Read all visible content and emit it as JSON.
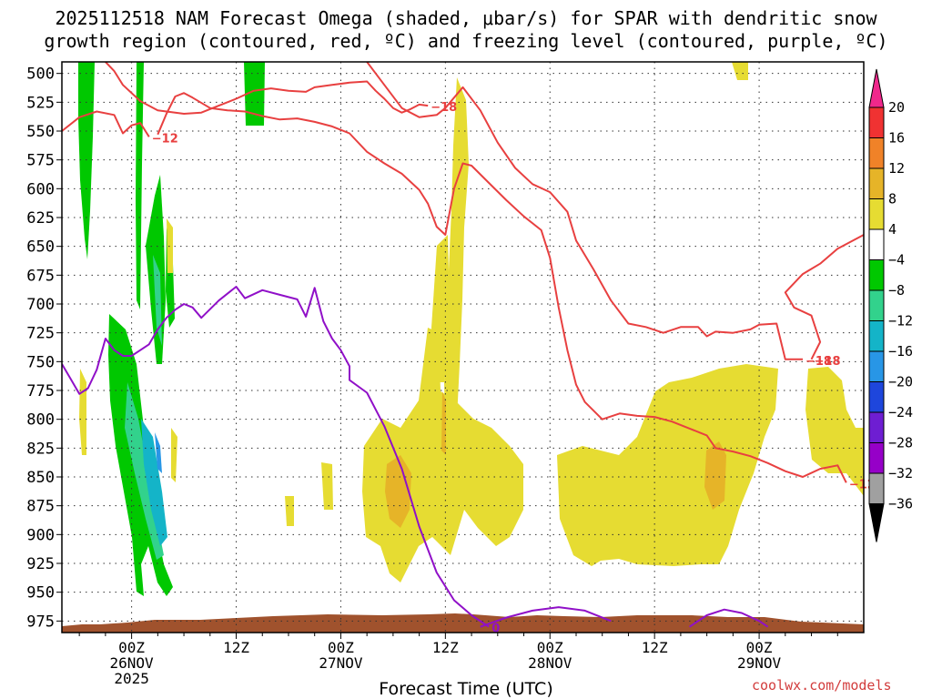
{
  "title_line1": "2025112518 NAM Forecast Omega (shaded, μbar/s) for SPAR with dendritic snow",
  "title_line2": "growth region (contoured, red, ºC) and freezing level (contoured, purple, ºC)",
  "watermark": "coolwx.com/models",
  "chart_data": {
    "type": "heatmap",
    "xlabel": "Forecast Time (UTC)",
    "ylabel": "",
    "y_scale": "pressure_hPa_inverted",
    "ylim": [
      985,
      490
    ],
    "y_ticks": [
      "500",
      "525",
      "550",
      "575",
      "600",
      "625",
      "650",
      "675",
      "700",
      "725",
      "750",
      "775",
      "800",
      "825",
      "850",
      "875",
      "900",
      "925",
      "950",
      "975"
    ],
    "xlim_hours": [
      -8,
      84
    ],
    "x_ticks": [
      {
        "hour": 0,
        "labels": [
          "00Z",
          "26NOV",
          "2025"
        ]
      },
      {
        "hour": 12,
        "labels": [
          "12Z"
        ]
      },
      {
        "hour": 24,
        "labels": [
          "00Z",
          "27NOV"
        ]
      },
      {
        "hour": 36,
        "labels": [
          "12Z"
        ]
      },
      {
        "hour": 48,
        "labels": [
          "00Z",
          "28NOV"
        ]
      },
      {
        "hour": 60,
        "labels": [
          "12Z"
        ]
      },
      {
        "hour": 72,
        "labels": [
          "00Z",
          "29NOV"
        ]
      }
    ],
    "colorbar": {
      "labels": [
        "20",
        "16",
        "12",
        "8",
        "4",
        "−4",
        "−8",
        "−12",
        "−16",
        "−20",
        "−24",
        "−28",
        "−32",
        "−36"
      ],
      "colors": [
        "#f03232",
        "#f08228",
        "#e6b428",
        "#e6dc32",
        "#ffffff",
        "#00c800",
        "#32d28c",
        "#14b4c8",
        "#2896e6",
        "#1e46dc",
        "#6e1ed2",
        "#9600c8",
        "#a0a0a0"
      ],
      "top_arrow": "#f0288c",
      "bottom_arrow": "#000000"
    },
    "series": [
      {
        "name": "dendritic -12 (upper)",
        "color": "#e84040",
        "label": "−12",
        "points": [
          [
            -8,
            550
          ],
          [
            -6,
            538
          ],
          [
            -4,
            533
          ],
          [
            -2,
            536
          ],
          [
            -1,
            552
          ],
          [
            0,
            545
          ],
          [
            1,
            543
          ],
          [
            2,
            555
          ]
        ]
      },
      {
        "name": "dendritic -12 (main)",
        "color": "#e84040",
        "label": "−12",
        "points": [
          [
            3,
            553
          ],
          [
            4,
            535
          ],
          [
            5,
            520
          ],
          [
            6,
            517
          ],
          [
            7,
            521
          ],
          [
            9,
            530
          ],
          [
            11,
            532
          ],
          [
            13,
            533
          ],
          [
            15,
            537
          ],
          [
            17,
            540
          ],
          [
            19,
            539
          ],
          [
            21,
            542
          ],
          [
            23,
            546
          ],
          [
            25,
            552
          ],
          [
            27,
            568
          ],
          [
            29,
            578
          ],
          [
            31,
            587
          ],
          [
            33,
            601
          ],
          [
            34,
            613
          ],
          [
            35,
            633
          ],
          [
            36,
            640
          ],
          [
            37,
            600
          ],
          [
            38,
            578
          ],
          [
            39,
            580
          ],
          [
            41,
            595
          ],
          [
            43,
            610
          ],
          [
            45,
            624
          ],
          [
            47,
            636
          ],
          [
            48,
            660
          ],
          [
            49,
            703
          ],
          [
            50,
            740
          ],
          [
            51,
            770
          ],
          [
            52,
            785
          ],
          [
            54,
            800
          ],
          [
            56,
            795
          ],
          [
            58,
            797
          ],
          [
            60,
            798
          ],
          [
            62,
            802
          ],
          [
            64,
            808
          ],
          [
            66,
            814
          ],
          [
            67,
            825
          ],
          [
            69,
            828
          ],
          [
            71,
            832
          ],
          [
            73,
            838
          ],
          [
            75,
            845
          ],
          [
            77,
            850
          ],
          [
            79,
            843
          ],
          [
            81,
            840
          ],
          [
            82,
            855
          ]
        ]
      },
      {
        "name": "dendritic -18 (top)",
        "color": "#e84040",
        "label": "−18",
        "points": [
          [
            -3,
            490
          ],
          [
            -2,
            498
          ],
          [
            -1,
            510
          ],
          [
            1,
            524
          ],
          [
            3,
            532
          ],
          [
            6,
            535
          ],
          [
            8,
            534
          ],
          [
            10,
            528
          ],
          [
            12,
            522
          ],
          [
            14,
            515
          ],
          [
            16,
            513
          ],
          [
            18,
            515
          ],
          [
            20,
            516
          ],
          [
            21,
            512
          ],
          [
            23,
            510
          ],
          [
            25,
            508
          ],
          [
            27,
            507
          ],
          [
            28,
            515
          ],
          [
            29,
            522
          ],
          [
            30,
            530
          ],
          [
            31,
            534
          ],
          [
            32,
            531
          ],
          [
            33,
            527
          ],
          [
            34,
            528
          ]
        ]
      },
      {
        "name": "dendritic -18 (upper right)",
        "color": "#e84040",
        "label": "−18",
        "points": [
          [
            27,
            490
          ],
          [
            29,
            510
          ],
          [
            31,
            530
          ],
          [
            33,
            538
          ],
          [
            35,
            536
          ],
          [
            36,
            530
          ],
          [
            38,
            512
          ],
          [
            40,
            532
          ],
          [
            42,
            560
          ],
          [
            44,
            582
          ],
          [
            46,
            596
          ],
          [
            48,
            603
          ],
          [
            50,
            620
          ],
          [
            51,
            645
          ],
          [
            53,
            670
          ],
          [
            55,
            697
          ],
          [
            57,
            717
          ],
          [
            59,
            720
          ],
          [
            61,
            725
          ],
          [
            63,
            720
          ],
          [
            65,
            720
          ],
          [
            66,
            728
          ],
          [
            67,
            724
          ],
          [
            69,
            725
          ],
          [
            71,
            722
          ],
          [
            72,
            718
          ],
          [
            74,
            717
          ],
          [
            75,
            748
          ],
          [
            77,
            748
          ]
        ]
      },
      {
        "name": "dendritic -18 (right loop)",
        "color": "#e84040",
        "label": "−18",
        "points": [
          [
            84,
            640
          ],
          [
            81,
            652
          ],
          [
            79,
            665
          ],
          [
            77,
            674
          ],
          [
            75,
            690
          ],
          [
            76,
            703
          ],
          [
            78,
            710
          ],
          [
            79,
            733
          ],
          [
            78,
            748
          ]
        ]
      },
      {
        "name": "freezing level 0",
        "color": "#9010c8",
        "label": "0",
        "points": [
          [
            -8,
            752
          ],
          [
            -7,
            765
          ],
          [
            -6,
            778
          ],
          [
            -5,
            773
          ],
          [
            -4,
            757
          ],
          [
            -3,
            730
          ],
          [
            -2,
            740
          ],
          [
            -1,
            745
          ],
          [
            0,
            745
          ],
          [
            1,
            740
          ],
          [
            2,
            735
          ],
          [
            3,
            722
          ],
          [
            4,
            712
          ],
          [
            5,
            705
          ],
          [
            6,
            700
          ],
          [
            7,
            703
          ],
          [
            8,
            712
          ],
          [
            10,
            697
          ],
          [
            12,
            685
          ],
          [
            13,
            695
          ],
          [
            15,
            688
          ],
          [
            17,
            692
          ],
          [
            19,
            696
          ],
          [
            20,
            711
          ],
          [
            21,
            686
          ],
          [
            22,
            715
          ],
          [
            23,
            730
          ],
          [
            24,
            740
          ],
          [
            25,
            754
          ],
          [
            25,
            766
          ],
          [
            27,
            777
          ],
          [
            29,
            806
          ],
          [
            31,
            843
          ],
          [
            33,
            893
          ],
          [
            35,
            933
          ],
          [
            37,
            957
          ],
          [
            39,
            970
          ],
          [
            41,
            980
          ]
        ]
      },
      {
        "name": "freezing level 0 (arc 1)",
        "color": "#9010c8",
        "label": "",
        "points": [
          [
            40,
            980
          ],
          [
            43,
            972
          ],
          [
            46,
            966
          ],
          [
            49,
            963
          ],
          [
            52,
            966
          ],
          [
            55,
            975
          ]
        ]
      },
      {
        "name": "freezing level 0 (arc 2)",
        "color": "#9010c8",
        "label": "",
        "points": [
          [
            64,
            980
          ],
          [
            66,
            970
          ],
          [
            68,
            965
          ],
          [
            70,
            968
          ],
          [
            72,
            975
          ],
          [
            73,
            980
          ]
        ]
      }
    ]
  }
}
